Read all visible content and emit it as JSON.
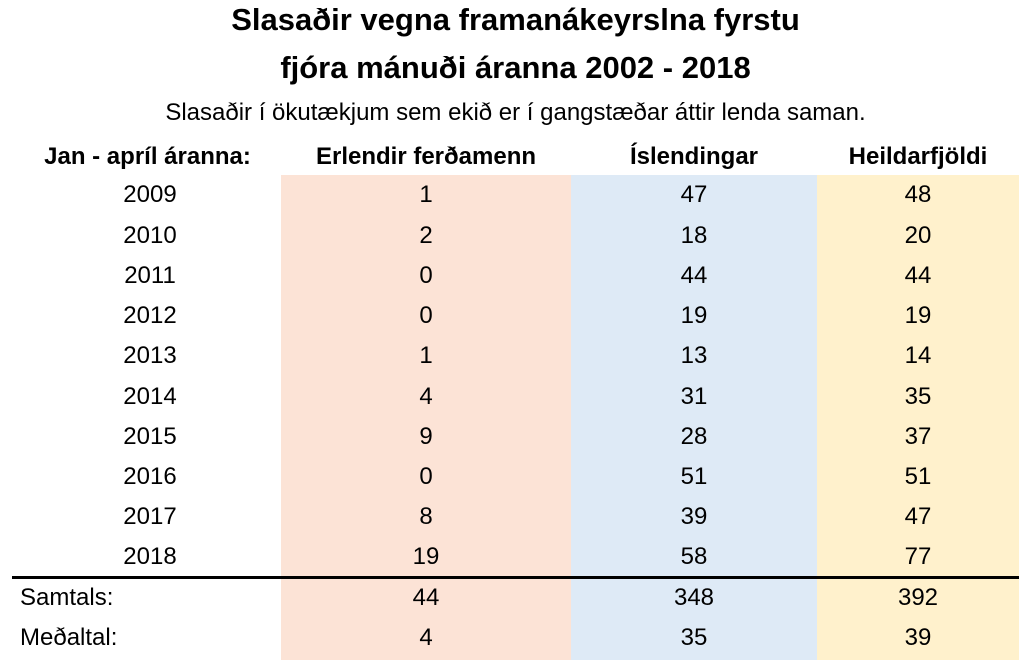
{
  "title_line1": "Slasaðir vegna framanákeyrslna fyrstu",
  "title_line2": "fjóra mánuði áranna 2002 - 2018",
  "subtitle": "Slasaðir í ökutækjum sem ekið er í gangstæðar áttir lenda saman.",
  "colors": {
    "col1_bg": "#FCE3D6",
    "col2_bg": "#DEEAF6",
    "col3_bg": "#FFF1CC"
  },
  "headers": [
    "Jan - apríl áranna:",
    "Erlendir ferðamenn",
    "Íslendingar",
    "Heildarfjöldi"
  ],
  "rows": [
    [
      "2009",
      "1",
      "47",
      "48"
    ],
    [
      "2010",
      "2",
      "18",
      "20"
    ],
    [
      "2011",
      "0",
      "44",
      "44"
    ],
    [
      "2012",
      "0",
      "19",
      "19"
    ],
    [
      "2013",
      "1",
      "13",
      "14"
    ],
    [
      "2014",
      "4",
      "31",
      "35"
    ],
    [
      "2015",
      "9",
      "28",
      "37"
    ],
    [
      "2016",
      "0",
      "51",
      "51"
    ],
    [
      "2017",
      "8",
      "39",
      "47"
    ],
    [
      "2018",
      "19",
      "58",
      "77"
    ]
  ],
  "summary": [
    [
      "Samtals:",
      "44",
      "348",
      "392"
    ],
    [
      "Meðaltal:",
      "4",
      "35",
      "39"
    ]
  ]
}
